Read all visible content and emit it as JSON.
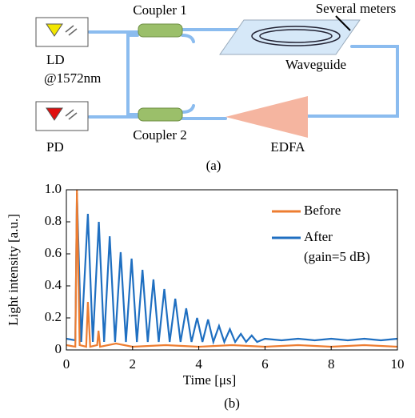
{
  "diagram": {
    "coupler1": "Coupler 1",
    "several_meters": "Several meters",
    "ld": "LD",
    "wavelength": "@1572nm",
    "waveguide": "Waveguide",
    "pd": "PD",
    "coupler2": "Coupler 2",
    "edfa": "EDFA",
    "caption": "(a)"
  },
  "chart_data": {
    "type": "line",
    "caption": "(b)",
    "xlabel": "Time [μs]",
    "ylabel": "Light intensity [a.u.]",
    "xlim": [
      0,
      10
    ],
    "xticks": [
      0,
      2,
      4,
      6,
      8,
      10
    ],
    "ylim": [
      0,
      1
    ],
    "yticks": [
      0,
      0.2,
      0.4,
      0.6,
      0.8,
      {
        "value": 1,
        "label": "1.0"
      }
    ],
    "legend_position": "upper right",
    "legend_note": "(gain=5 dB)",
    "series": [
      {
        "name": "After",
        "color": "#1f6fc1",
        "x": [
          0,
          0.27,
          0.32,
          0.45,
          0.65,
          0.8,
          0.98,
          1.14,
          1.31,
          1.47,
          1.64,
          1.8,
          1.97,
          2.13,
          2.3,
          2.46,
          2.63,
          2.79,
          2.96,
          3.12,
          3.29,
          3.45,
          3.62,
          3.78,
          3.95,
          4.11,
          4.28,
          4.44,
          4.61,
          4.77,
          4.94,
          5.1,
          5.27,
          5.43,
          5.6,
          5.76,
          6,
          6.5,
          7,
          7.5,
          8,
          8.5,
          9,
          9.5,
          10
        ],
        "values": [
          0.07,
          0.06,
          0.98,
          0.05,
          0.85,
          0.05,
          0.8,
          0.05,
          0.71,
          0.05,
          0.61,
          0.05,
          0.57,
          0.05,
          0.5,
          0.05,
          0.44,
          0.05,
          0.38,
          0.05,
          0.32,
          0.05,
          0.26,
          0.05,
          0.2,
          0.05,
          0.19,
          0.05,
          0.15,
          0.05,
          0.13,
          0.05,
          0.1,
          0.05,
          0.09,
          0.05,
          0.07,
          0.06,
          0.07,
          0.06,
          0.07,
          0.06,
          0.07,
          0.06,
          0.07
        ]
      },
      {
        "name": "Before",
        "color": "#ed7d31",
        "x": [
          0,
          0.27,
          0.32,
          0.4,
          0.6,
          0.65,
          0.72,
          0.93,
          0.97,
          1.02,
          1.5,
          2,
          3,
          4,
          5,
          6,
          7,
          8,
          9,
          10
        ],
        "values": [
          0.03,
          0.02,
          1,
          0.03,
          0.02,
          0.3,
          0.02,
          0.03,
          0.12,
          0.02,
          0.04,
          0.02,
          0.03,
          0.02,
          0.03,
          0.02,
          0.03,
          0.02,
          0.03,
          0.02
        ]
      }
    ]
  }
}
